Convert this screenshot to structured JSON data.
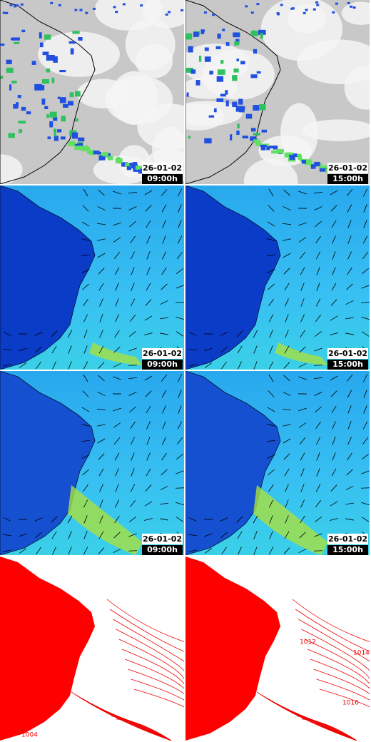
{
  "panels": [
    {
      "date": "26-01-02",
      "time": "09:00h"
    },
    {
      "date": "26-01-02",
      "time": "15:00h"
    },
    {
      "date": "26-01-02",
      "time": "09:00h"
    },
    {
      "date": "26-01-02",
      "time": "15:00h"
    },
    {
      "date": "26-01-02",
      "time": "09:00h"
    },
    {
      "date": "26-01-02",
      "time": "15:00h"
    }
  ],
  "pressure_labels": [
    "1004",
    "1012",
    "1014",
    "1016"
  ]
}
